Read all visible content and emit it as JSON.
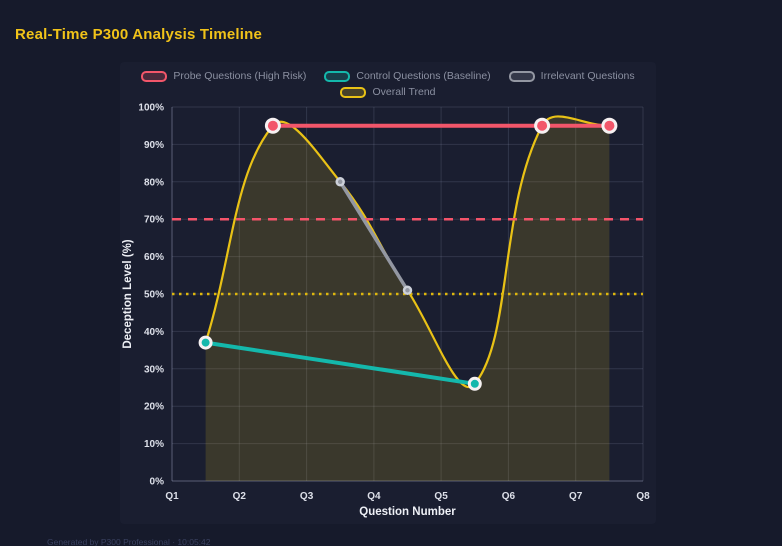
{
  "page": {
    "title": "Real-Time P300 Analysis Timeline",
    "footer": "Generated by P300 Professional · 10:05:42"
  },
  "colors": {
    "background": "#161a2b",
    "panel": "#1a1e30",
    "title": "#f1c319",
    "tick_text": "#dde0e9",
    "axis_title_text": "#edeff5",
    "legend_text": "#8b90a1",
    "footer_text": "#3a4160"
  },
  "chart_data": {
    "type": "line",
    "title": "Real-Time P300 Analysis Timeline",
    "xlabel": "Question Number",
    "ylabel": "Deception Level (%)",
    "x_ticks": [
      "Q1",
      "Q2",
      "Q3",
      "Q4",
      "Q5",
      "Q6",
      "Q7",
      "Q8"
    ],
    "x_range": [
      1,
      8
    ],
    "y_ticks": [
      "0%",
      "10%",
      "20%",
      "30%",
      "40%",
      "50%",
      "60%",
      "70%",
      "80%",
      "90%",
      "100%"
    ],
    "y_range": [
      0,
      100
    ],
    "grid": true,
    "legend_position": "top",
    "series": [
      {
        "id": "probe",
        "name": "Probe Questions (High Risk)",
        "color": "#f2566a",
        "marker_stroke": "#f6f1f2",
        "marker_r": 6.5,
        "marker_stroke_w": 3,
        "line_w": 4,
        "points": [
          [
            2.5,
            95
          ],
          [
            6.5,
            95
          ],
          [
            7.5,
            95
          ]
        ]
      },
      {
        "id": "control",
        "name": "Control Questions (Baseline)",
        "color": "#14b8ac",
        "marker_stroke": "#f6f1f2",
        "marker_r": 5.5,
        "marker_stroke_w": 3,
        "line_w": 4,
        "points": [
          [
            1.5,
            37
          ],
          [
            5.5,
            26
          ]
        ]
      },
      {
        "id": "irrelevant",
        "name": "Irrelevant Questions",
        "color": "#9397a2",
        "marker_stroke": "#ccd0d9",
        "marker_r": 3.5,
        "marker_stroke_w": 2.5,
        "line_w": 3.5,
        "points": [
          [
            3.5,
            80
          ],
          [
            4.5,
            51
          ]
        ]
      },
      {
        "id": "trend",
        "name": "Overall Trend",
        "color": "#e9c216",
        "line_w": 2.2,
        "smooth": true,
        "fill": "rgba(233,194,22,0.16)",
        "points": [
          [
            1.5,
            37
          ],
          [
            2.5,
            95
          ],
          [
            3.5,
            80
          ],
          [
            4.5,
            51
          ],
          [
            5.5,
            26
          ],
          [
            6.5,
            95
          ],
          [
            7.5,
            95
          ]
        ]
      }
    ],
    "thresholds": [
      {
        "label": "high-risk-threshold",
        "y": 70,
        "color": "#f4546a",
        "dash": "9 7",
        "width": 2.5
      },
      {
        "label": "baseline-threshold",
        "y": 50,
        "color": "#deb70d",
        "dash": "2.5 4.5",
        "width": 2.5
      }
    ],
    "legend_rows": [
      [
        "probe",
        "control",
        "irrelevant"
      ],
      [
        "trend"
      ]
    ]
  }
}
